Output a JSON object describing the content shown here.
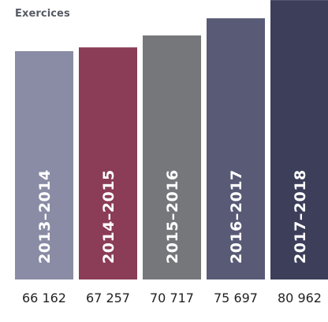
{
  "chart_data": {
    "type": "bar",
    "title": "Exercices",
    "categories": [
      "2013–2014",
      "2014–2015",
      "2015–2016",
      "2016–2017",
      "2017–2018"
    ],
    "values": [
      66162,
      67257,
      70717,
      75697,
      80962
    ],
    "value_labels": [
      "66 162",
      "67 257",
      "70 717",
      "75 697",
      "80 962"
    ],
    "colors": [
      "#8a8ca5",
      "#8b3c57",
      "#76777b",
      "#585a76",
      "#3c3e5a"
    ],
    "grid": false,
    "legend": "none"
  }
}
